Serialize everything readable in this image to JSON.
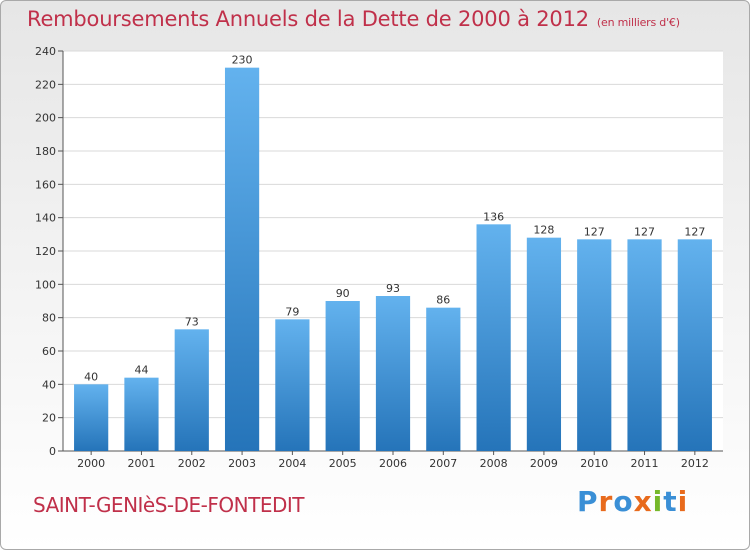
{
  "title": "Remboursements Annuels de la Dette de 2000 à 2012",
  "subtitle": "(en milliers d'€)",
  "place": "SAINT-GENIèS-DE-FONTEDIT",
  "logo": {
    "text": "Proxiti",
    "colors": [
      "#3a8fd6",
      "#e86a1c",
      "#3a8fd6",
      "#e86a1c",
      "#76b82a",
      "#3a8fd6",
      "#e86a1c"
    ]
  },
  "colors": {
    "title": "#c0304a",
    "bar_top": "#63b2ee",
    "bar_bottom": "#2574b9",
    "grid": "#d9d9d9"
  },
  "chart_data": {
    "type": "bar",
    "title": "Remboursements Annuels de la Dette de 2000 à 2012",
    "subtitle": "(en milliers d'€)",
    "categories": [
      "2000",
      "2001",
      "2002",
      "2003",
      "2004",
      "2005",
      "2006",
      "2007",
      "2008",
      "2009",
      "2010",
      "2011",
      "2012"
    ],
    "values": [
      40,
      44,
      73,
      230,
      79,
      90,
      93,
      86,
      136,
      128,
      127,
      127,
      127
    ],
    "ylim": [
      0,
      240
    ],
    "yticks": [
      0,
      20,
      40,
      60,
      80,
      100,
      120,
      140,
      160,
      180,
      200,
      220,
      240
    ],
    "grid": true,
    "legend": "none"
  }
}
